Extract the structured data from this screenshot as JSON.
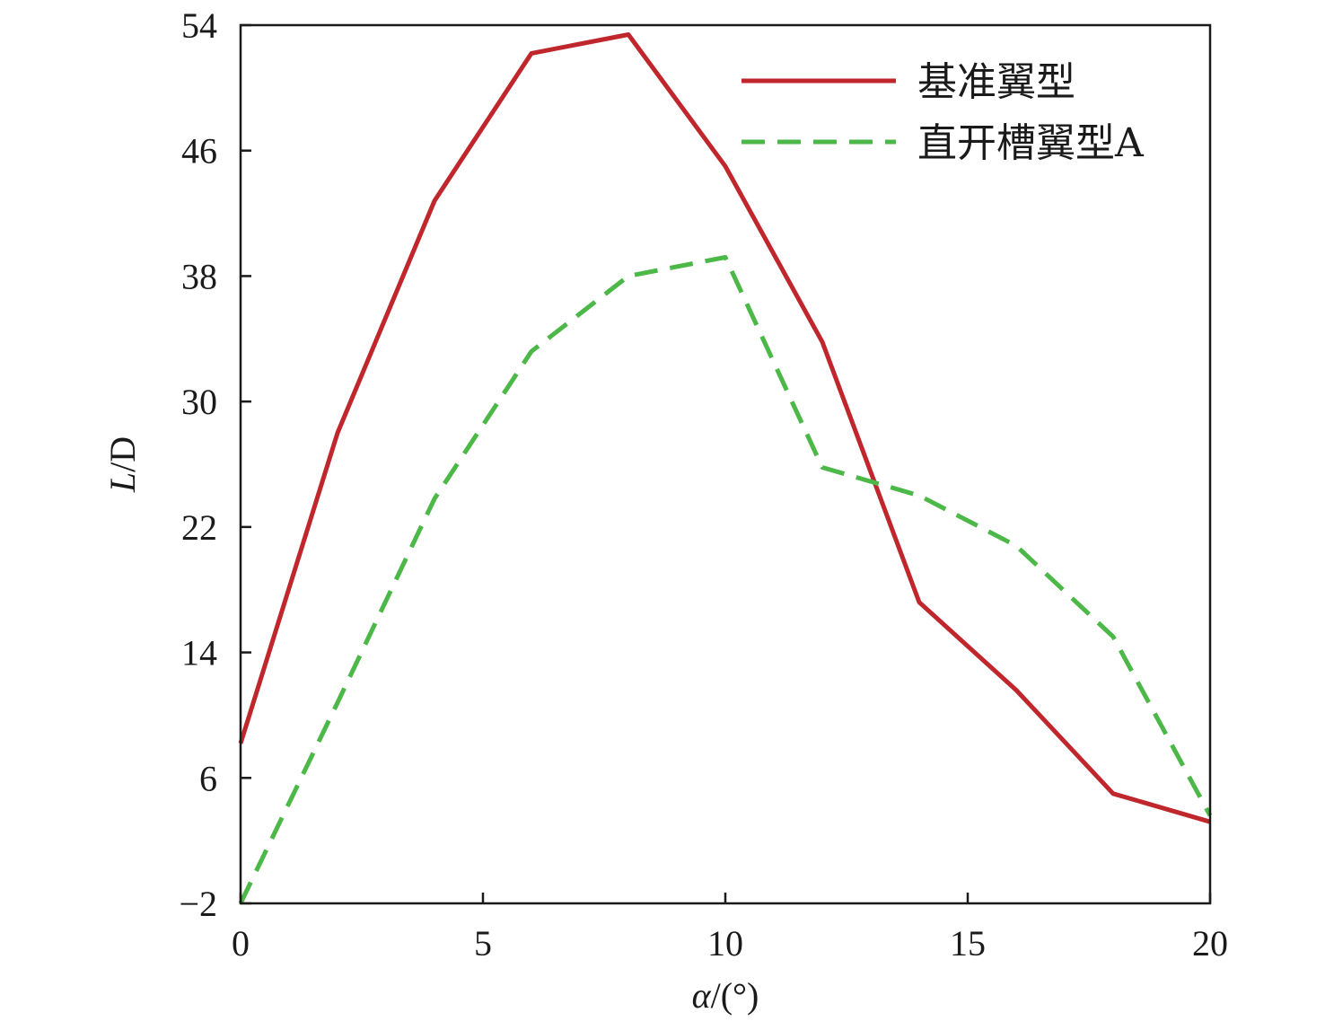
{
  "chart_data": {
    "type": "line",
    "xlabel_var": "α",
    "xlabel_unit": "/(°)",
    "ylabel_var": "L",
    "ylabel_unit": "/D",
    "xlim": [
      0,
      20
    ],
    "ylim": [
      -2,
      54
    ],
    "xticks": [
      0,
      5,
      10,
      15,
      20
    ],
    "xtick_labels": [
      "0",
      "5",
      "10",
      "15",
      "20"
    ],
    "yticks": [
      -2,
      6,
      14,
      22,
      30,
      38,
      46,
      54
    ],
    "ytick_labels": [
      "−2",
      "6",
      "14",
      "22",
      "30",
      "38",
      "46",
      "54"
    ],
    "grid": false,
    "legend_position": "top-right",
    "series": [
      {
        "name": "基准翼型",
        "color": "#c0272d",
        "style": "solid",
        "x": [
          0,
          2,
          4,
          6,
          8,
          10,
          12,
          14,
          16,
          18,
          20
        ],
        "y": [
          8.2,
          28.0,
          42.8,
          52.2,
          53.4,
          45.0,
          33.8,
          17.2,
          11.6,
          5.0,
          3.2
        ]
      },
      {
        "name": "直开槽翼型A",
        "color": "#4cb848",
        "style": "dashed",
        "x": [
          0,
          2,
          4,
          6,
          8,
          10,
          12,
          14,
          16,
          18,
          20
        ],
        "y": [
          -2.0,
          10.8,
          23.8,
          33.2,
          38.0,
          39.2,
          25.8,
          24.0,
          20.8,
          15.0,
          3.6
        ]
      }
    ]
  }
}
